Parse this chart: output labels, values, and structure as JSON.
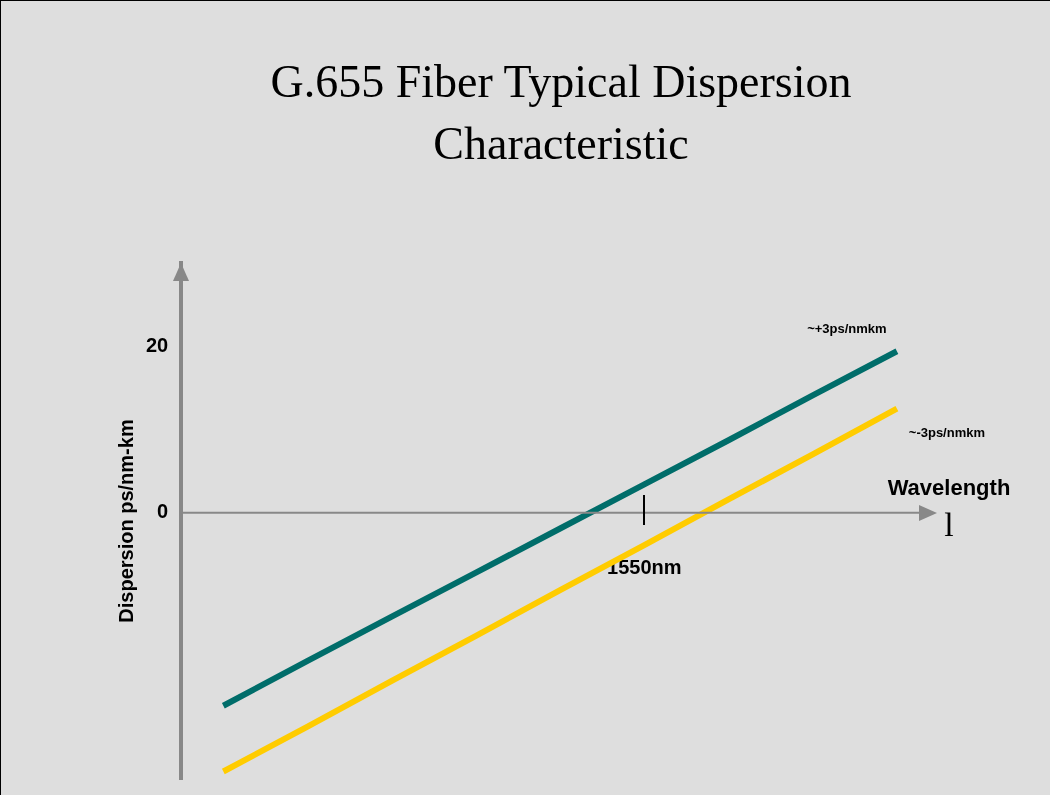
{
  "chart_data": {
    "type": "line",
    "title": "G.655 Fiber Typical Dispersion Characteristic",
    "xlabel": "Wavelength\nl",
    "ylabel": "Dispersion ps/nm-km",
    "categories": [
      null,
      null,
      null,
      null,
      null,
      "1550nm",
      null,
      null,
      null
    ],
    "series": [
      {
        "name": "~+3ps/nmkm",
        "color": "#006d6a",
        "values": [
          -23.2,
          -17.8,
          -12.5,
          -7.2,
          -1.9,
          3.4,
          8.7,
          14.1,
          19.4
        ]
      },
      {
        "name": "~-3ps/nmkm",
        "color": "#ffcc00",
        "values": [
          -31.1,
          -25.7,
          -20.2,
          -14.8,
          -9.3,
          -3.9,
          1.6,
          7.0,
          12.5
        ]
      }
    ],
    "ref_lines": [
      {
        "axis": "y",
        "value": 0,
        "color": "#888888"
      }
    ],
    "ylim": [
      -32,
      30
    ],
    "yticks": [
      0,
      20
    ],
    "grid": false,
    "legend": false,
    "marker": "none",
    "line_style": "solid"
  }
}
